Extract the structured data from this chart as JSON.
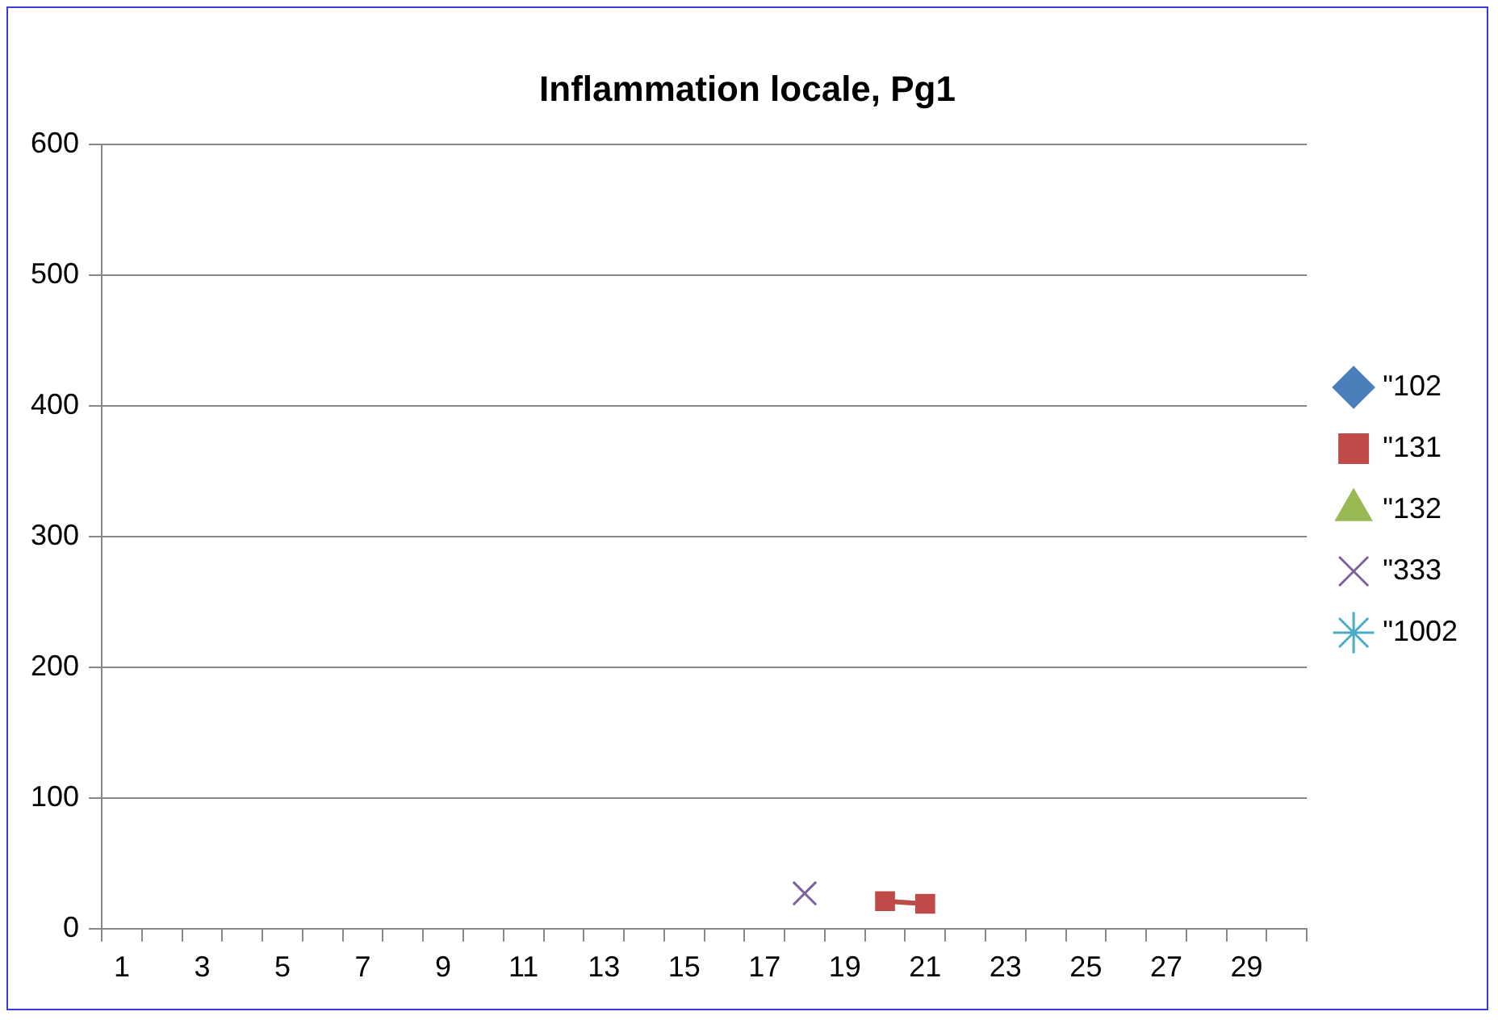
{
  "chart_data": {
    "type": "line",
    "title": "Inflammation locale, Pg1",
    "series": [
      {
        "name": "\"102",
        "color": "#4a7ebb",
        "marker": "diamond"
      },
      {
        "name": "\"131",
        "color": "#be4b48",
        "marker": "square",
        "x": [
          20,
          21
        ],
        "values": [
          21,
          19
        ]
      },
      {
        "name": "\"132",
        "color": "#98b954",
        "marker": "triangle"
      },
      {
        "name": "\"333",
        "color": "#7d60a0",
        "marker": "cross",
        "x": [
          18
        ],
        "values": [
          27
        ]
      },
      {
        "name": "\"1002",
        "color": "#4bacc6",
        "marker": "star"
      }
    ],
    "xlim": [
      0.5,
      30.5
    ],
    "xticks": [
      {
        "value": 0.5,
        "label": null
      },
      1,
      {
        "value": 1.5,
        "label": null
      },
      {
        "value": 2.5,
        "label": null
      },
      3,
      {
        "value": 3.5,
        "label": null
      },
      {
        "value": 4.5,
        "label": null
      },
      5,
      {
        "value": 5.5,
        "label": null
      },
      {
        "value": 6.5,
        "label": null
      },
      7,
      {
        "value": 7.5,
        "label": null
      },
      {
        "value": 8.5,
        "label": null
      },
      9,
      {
        "value": 9.5,
        "label": null
      },
      {
        "value": 10.5,
        "label": null
      },
      11,
      {
        "value": 11.5,
        "label": null
      },
      {
        "value": 12.5,
        "label": null
      },
      13,
      {
        "value": 13.5,
        "label": null
      },
      {
        "value": 14.5,
        "label": null
      },
      15,
      {
        "value": 15.5,
        "label": null
      },
      {
        "value": 16.5,
        "label": null
      },
      17,
      {
        "value": 17.5,
        "label": null
      },
      {
        "value": 18.5,
        "label": null
      },
      19,
      {
        "value": 19.5,
        "label": null
      },
      {
        "value": 20.5,
        "label": null
      },
      21,
      {
        "value": 21.5,
        "label": null
      },
      {
        "value": 22.5,
        "label": null
      },
      23,
      {
        "value": 23.5,
        "label": null
      },
      {
        "value": 24.5,
        "label": null
      },
      25,
      {
        "value": 25.5,
        "label": null
      },
      {
        "value": 26.5,
        "label": null
      },
      27,
      {
        "value": 27.5,
        "label": null
      },
      {
        "value": 28.5,
        "label": null
      },
      29,
      {
        "value": 29.5,
        "label": null
      },
      {
        "value": 30.5,
        "label": null
      }
    ],
    "ylim": [
      0,
      600
    ],
    "yticks": [
      0,
      100,
      200,
      300,
      400,
      500,
      600
    ],
    "grid": "y",
    "legend": "right"
  }
}
